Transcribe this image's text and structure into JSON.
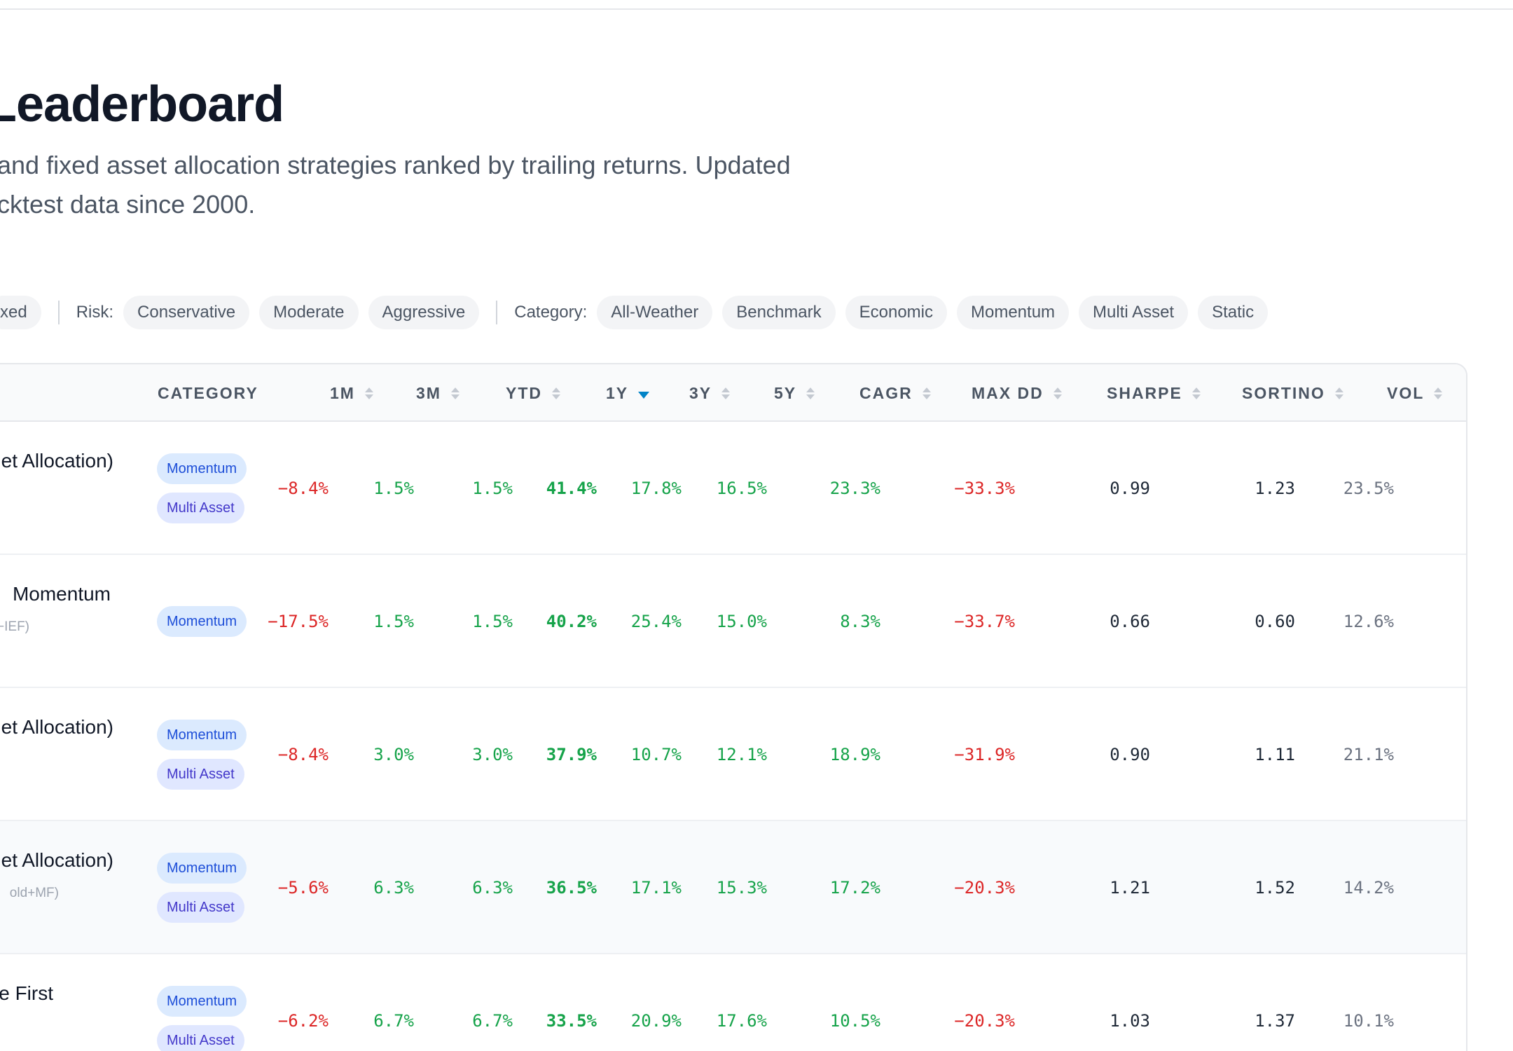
{
  "page": {
    "title": "Leaderboard",
    "subtitle_lines": [
      "and fixed asset allocation strategies ranked by trailing returns. Updated",
      "cktest data since 2000."
    ]
  },
  "filters": {
    "type_partial": "xed",
    "risk_label": "Risk:",
    "risk": [
      "Conservative",
      "Moderate",
      "Aggressive"
    ],
    "category_label": "Category:",
    "categories": [
      "All-Weather",
      "Benchmark",
      "Economic",
      "Momentum",
      "Multi Asset",
      "Static"
    ]
  },
  "table": {
    "columns": [
      "CATEGORY",
      "1M",
      "3M",
      "YTD",
      "1Y",
      "3Y",
      "5Y",
      "CAGR",
      "MAX DD",
      "SHARPE",
      "SORTINO",
      "VOL"
    ],
    "active_sort": "1Y",
    "rows": [
      {
        "name": "et Allocation)",
        "sub": "",
        "badges": [
          "Momentum",
          "Multi Asset"
        ],
        "m1": "-8.4%",
        "m3": "1.5%",
        "ytd": "1.5%",
        "y1": "41.4%",
        "y3": "17.8%",
        "y5": "16.5%",
        "cagr": "23.3%",
        "maxdd": "-33.3%",
        "sharpe": "0.99",
        "sortino": "1.23",
        "vol": "23.5%"
      },
      {
        "name": "Momentum",
        "sub": "-IEF)",
        "badges": [
          "Momentum"
        ],
        "m1": "-17.5%",
        "m3": "1.5%",
        "ytd": "1.5%",
        "y1": "40.2%",
        "y3": "25.4%",
        "y5": "15.0%",
        "cagr": "8.3%",
        "maxdd": "-33.7%",
        "sharpe": "0.66",
        "sortino": "0.60",
        "vol": "12.6%"
      },
      {
        "name": "et Allocation)",
        "sub": "",
        "badges": [
          "Momentum",
          "Multi Asset"
        ],
        "m1": "-8.4%",
        "m3": "3.0%",
        "ytd": "3.0%",
        "y1": "37.9%",
        "y3": "10.7%",
        "y5": "12.1%",
        "cagr": "18.9%",
        "maxdd": "-31.9%",
        "sharpe": "0.90",
        "sortino": "1.11",
        "vol": "21.1%"
      },
      {
        "name": "et Allocation)",
        "sub": "old+MF)",
        "badges": [
          "Momentum",
          "Multi Asset"
        ],
        "m1": "-5.6%",
        "m3": "6.3%",
        "ytd": "6.3%",
        "y1": "36.5%",
        "y3": "17.1%",
        "y5": "15.3%",
        "cagr": "17.2%",
        "maxdd": "-20.3%",
        "sharpe": "1.21",
        "sortino": "1.52",
        "vol": "14.2%"
      },
      {
        "name": "e First",
        "sub": "",
        "badges": [
          "Momentum",
          "Multi Asset"
        ],
        "m1": "-6.2%",
        "m3": "6.7%",
        "ytd": "6.7%",
        "y1": "33.5%",
        "y3": "20.9%",
        "y5": "17.6%",
        "cagr": "10.5%",
        "maxdd": "-20.3%",
        "sharpe": "1.03",
        "sortino": "1.37",
        "vol": "10.1%"
      }
    ]
  },
  "colors": {
    "positive": "#16a34a",
    "negative": "#dc2626",
    "sort_active": "#0284c7",
    "badge_momentum": "#dbeafe",
    "badge_multi_asset": "#e0e7ff"
  }
}
